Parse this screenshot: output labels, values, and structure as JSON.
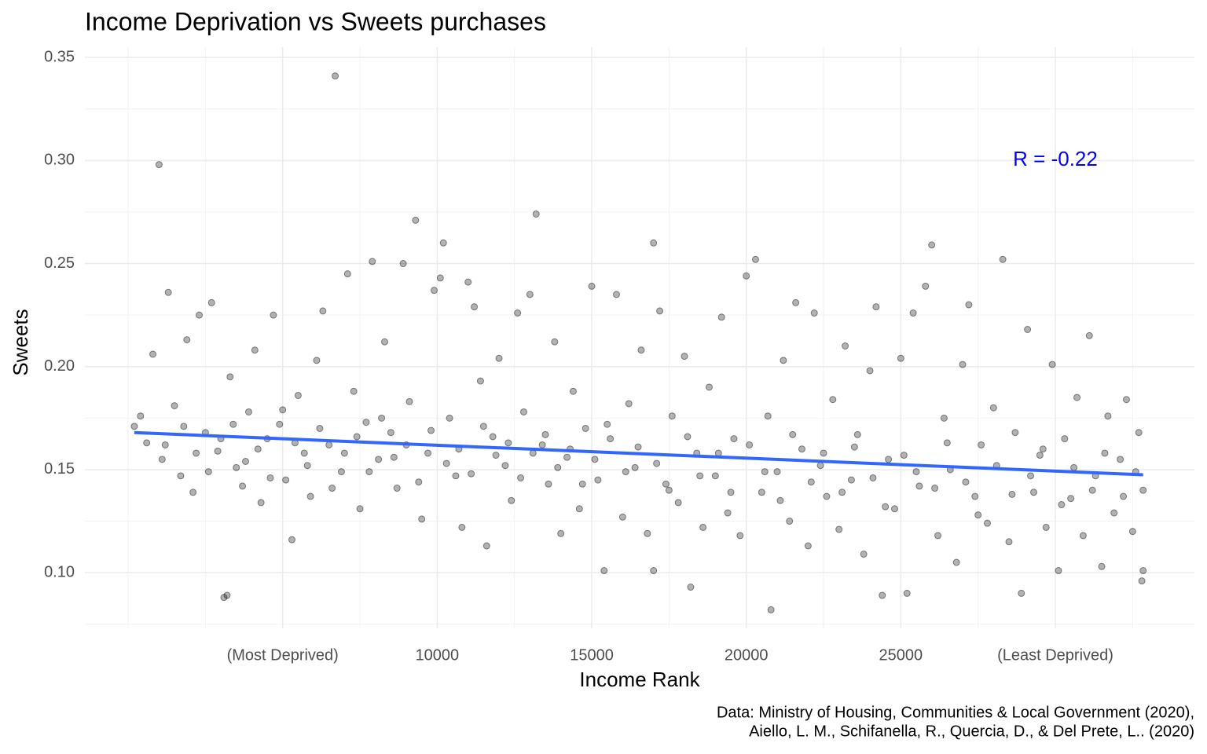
{
  "chart_data": {
    "type": "scatter",
    "title": "Income Deprivation vs Sweets purchases",
    "x_label": "Income Rank",
    "y_label": "Sweets",
    "caption": [
      "Data: Ministry of Housing, Communities & Local Government (2020),",
      "Aiello, L. M., Schifanella, R., Quercia, D., & Del Prete, L.. (2020)"
    ],
    "annotation": {
      "text": "R = -0.22",
      "x": 30000,
      "y": 0.3,
      "color": "#0000ff"
    },
    "xlim": [
      -1400,
      34500
    ],
    "ylim": [
      0.073,
      0.355
    ],
    "xticks": [
      {
        "value": 5000,
        "label": "(Most Deprived)"
      },
      10000,
      15000,
      20000,
      25000,
      {
        "value": 30000,
        "label": "(Least Deprived)"
      }
    ],
    "yticks": [
      {
        "value": 0.1,
        "label": "0.10"
      },
      0.15,
      {
        "value": 0.2,
        "label": "0.20"
      },
      0.25,
      {
        "value": 0.3,
        "label": "0.30"
      },
      0.35
    ],
    "xminor": [
      0,
      2500,
      7500,
      12500,
      17500,
      22500,
      27500,
      32500
    ],
    "yminor": [
      0.075,
      0.125,
      0.175,
      0.225,
      0.275,
      0.325
    ],
    "grid": true,
    "series": [
      {
        "color": "#000000",
        "x": [
          200,
          400,
          600,
          800,
          1000,
          1100,
          1300,
          1500,
          1700,
          1900,
          2100,
          2300,
          2500,
          2700,
          2900,
          3100,
          3200,
          3300,
          3500,
          3700,
          3900,
          4100,
          4300,
          4500,
          4700,
          4900,
          5100,
          5300,
          5500,
          5700,
          5900,
          6100,
          6300,
          6500,
          6700,
          6900,
          7100,
          7300,
          7500,
          7700,
          7900,
          8100,
          8300,
          8500,
          8700,
          8900,
          9100,
          9300,
          9500,
          9700,
          9900,
          10100,
          10200,
          10400,
          10600,
          10800,
          11000,
          11200,
          11400,
          11600,
          11800,
          12000,
          12200,
          12400,
          12600,
          12800,
          13000,
          13200,
          13400,
          13600,
          13800,
          14000,
          14200,
          14400,
          14600,
          14800,
          15000,
          15200,
          15400,
          15600,
          15800,
          16000,
          16200,
          16400,
          16600,
          16800,
          17000,
          17000,
          17200,
          17400,
          17600,
          17800,
          18000,
          18200,
          18400,
          18600,
          18800,
          19000,
          19200,
          19400,
          19600,
          19800,
          20000,
          20300,
          20500,
          20700,
          20800,
          21000,
          21200,
          21400,
          21600,
          21800,
          22000,
          22200,
          22400,
          22600,
          22800,
          23000,
          23200,
          23400,
          23600,
          23800,
          24000,
          24200,
          24400,
          24600,
          24800,
          25000,
          25200,
          25400,
          25600,
          25800,
          26000,
          26200,
          26400,
          26600,
          26800,
          27000,
          27200,
          27400,
          27600,
          27800,
          28000,
          28300,
          28500,
          28700,
          28900,
          29100,
          29300,
          29500,
          29700,
          29900,
          30100,
          30300,
          30500,
          30700,
          30900,
          31100,
          31300,
          31500,
          31700,
          31900,
          32100,
          32300,
          32500,
          32700,
          32800,
          32840,
          32840,
          1200,
          1800,
          2200,
          2600,
          3000,
          3400,
          3800,
          4200,
          4600,
          5000,
          5400,
          5800,
          6200,
          6600,
          7000,
          7400,
          7800,
          8200,
          8600,
          9000,
          9400,
          9800,
          10300,
          10700,
          11100,
          11500,
          11900,
          12300,
          12700,
          13100,
          13500,
          13900,
          14300,
          14700,
          15100,
          15500,
          16100,
          16500,
          17100,
          17500,
          18100,
          18500,
          19100,
          19500,
          20100,
          20600,
          21100,
          21500,
          22100,
          22500,
          23100,
          23500,
          24100,
          24500,
          25100,
          25500,
          26100,
          26500,
          27100,
          27500,
          28100,
          28600,
          29200,
          29600,
          30200,
          30600,
          31200,
          31600,
          32200,
          32600
        ],
        "values": [
          0.171,
          0.176,
          0.163,
          0.206,
          0.298,
          0.155,
          0.236,
          0.181,
          0.147,
          0.213,
          0.139,
          0.225,
          0.168,
          0.231,
          0.159,
          0.088,
          0.089,
          0.195,
          0.151,
          0.142,
          0.178,
          0.208,
          0.134,
          0.165,
          0.225,
          0.172,
          0.145,
          0.116,
          0.186,
          0.158,
          0.137,
          0.203,
          0.227,
          0.162,
          0.341,
          0.149,
          0.245,
          0.188,
          0.131,
          0.173,
          0.251,
          0.155,
          0.212,
          0.168,
          0.141,
          0.25,
          0.183,
          0.271,
          0.126,
          0.158,
          0.237,
          0.243,
          0.26,
          0.175,
          0.147,
          0.122,
          0.241,
          0.229,
          0.193,
          0.113,
          0.166,
          0.204,
          0.152,
          0.135,
          0.226,
          0.178,
          0.235,
          0.274,
          0.162,
          0.143,
          0.212,
          0.119,
          0.156,
          0.188,
          0.131,
          0.17,
          0.239,
          0.145,
          0.101,
          0.165,
          0.235,
          0.127,
          0.182,
          0.151,
          0.208,
          0.119,
          0.26,
          0.101,
          0.227,
          0.143,
          0.176,
          0.134,
          0.205,
          0.093,
          0.158,
          0.122,
          0.19,
          0.147,
          0.224,
          0.129,
          0.165,
          0.118,
          0.244,
          0.252,
          0.139,
          0.176,
          0.082,
          0.149,
          0.203,
          0.125,
          0.231,
          0.16,
          0.113,
          0.226,
          0.152,
          0.137,
          0.184,
          0.121,
          0.21,
          0.145,
          0.167,
          0.109,
          0.198,
          0.229,
          0.089,
          0.155,
          0.131,
          0.204,
          0.09,
          0.226,
          0.142,
          0.239,
          0.259,
          0.118,
          0.175,
          0.15,
          0.105,
          0.201,
          0.23,
          0.137,
          0.162,
          0.124,
          0.18,
          0.252,
          0.115,
          0.168,
          0.09,
          0.218,
          0.139,
          0.157,
          0.122,
          0.201,
          0.101,
          0.165,
          0.136,
          0.185,
          0.118,
          0.215,
          0.147,
          0.103,
          0.176,
          0.129,
          0.155,
          0.184,
          0.12,
          0.168,
          0.096,
          0.101,
          0.14,
          0.162,
          0.171,
          0.158,
          0.149,
          0.165,
          0.172,
          0.154,
          0.16,
          0.146,
          0.179,
          0.163,
          0.152,
          0.17,
          0.141,
          0.158,
          0.166,
          0.149,
          0.175,
          0.156,
          0.162,
          0.144,
          0.169,
          0.153,
          0.16,
          0.148,
          0.171,
          0.157,
          0.163,
          0.146,
          0.158,
          0.167,
          0.151,
          0.16,
          0.143,
          0.155,
          0.172,
          0.149,
          0.161,
          0.153,
          0.14,
          0.166,
          0.147,
          0.158,
          0.139,
          0.162,
          0.149,
          0.135,
          0.167,
          0.144,
          0.158,
          0.139,
          0.161,
          0.146,
          0.132,
          0.157,
          0.149,
          0.141,
          0.163,
          0.144,
          0.128,
          0.152,
          0.138,
          0.147,
          0.16,
          0.133,
          0.151,
          0.14,
          0.158,
          0.137,
          0.149
        ]
      }
    ],
    "trend": {
      "color": "#3366ff",
      "x": [
        200,
        32840
      ],
      "values": [
        0.168,
        0.1475
      ]
    }
  }
}
